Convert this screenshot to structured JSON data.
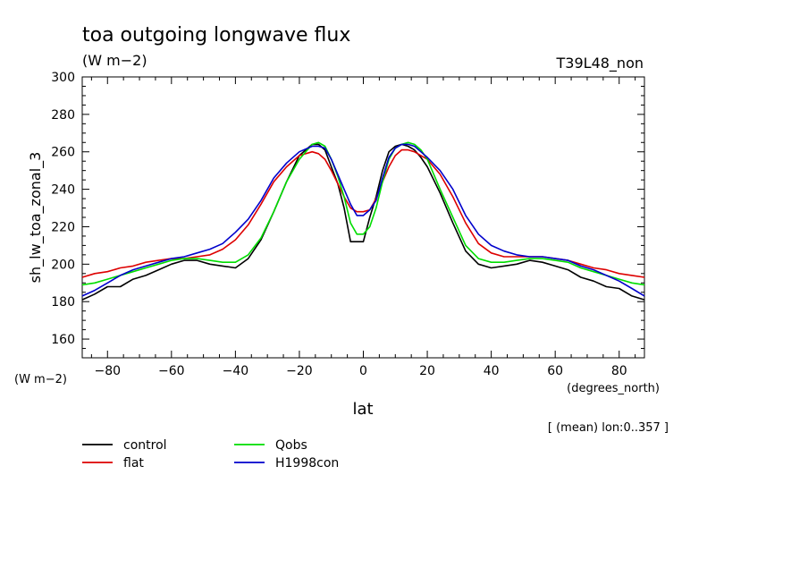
{
  "chart_data": {
    "type": "line",
    "title": "toa outgoing longwave flux",
    "units": "(W m−2)",
    "run_label": "T39L48_non",
    "ylabel": "sh_lw_toa_zonal_3",
    "yunits": "(W m−2)",
    "xlabel": "lat",
    "xunits": "(degrees_north)",
    "note": "[ (mean) lon:0..357 ]",
    "xlim": [
      -87.9,
      87.9
    ],
    "ylim": [
      150,
      300
    ],
    "xticks": [
      -80,
      -60,
      -40,
      -20,
      0,
      20,
      40,
      60,
      80
    ],
    "xtick_labels": [
      "−80",
      "−60",
      "−40",
      "−20",
      "0",
      "20",
      "40",
      "60",
      "80"
    ],
    "yticks": [
      160,
      180,
      200,
      220,
      240,
      260,
      280,
      300
    ],
    "ytick_labels": [
      "160",
      "180",
      "200",
      "220",
      "240",
      "260",
      "280",
      "300"
    ],
    "x": [
      -87.9,
      -84,
      -80,
      -76,
      -72,
      -68,
      -64,
      -60,
      -56,
      -52,
      -48,
      -44,
      -40,
      -36,
      -32,
      -28,
      -24,
      -20,
      -16,
      -14,
      -12,
      -10,
      -8,
      -6,
      -4,
      -2,
      0,
      2,
      4,
      6,
      8,
      10,
      12,
      14,
      16,
      18,
      20,
      24,
      28,
      32,
      36,
      40,
      44,
      48,
      52,
      56,
      60,
      64,
      68,
      72,
      76,
      80,
      84,
      87.9
    ],
    "series": [
      {
        "name": "control",
        "color": "#000000",
        "values": [
          181,
          184,
          188,
          188,
          192,
          194,
          197,
          200,
          202,
          202,
          200,
          199,
          198,
          203,
          213,
          228,
          244,
          258,
          264,
          264,
          261,
          252,
          243,
          230,
          212,
          212,
          212,
          225,
          236,
          250,
          260,
          263,
          264,
          263,
          261,
          257,
          252,
          238,
          222,
          207,
          200,
          198,
          199,
          200,
          202,
          201,
          199,
          197,
          193,
          191,
          188,
          187,
          183,
          181
        ]
      },
      {
        "name": "flat",
        "color": "#dd0000",
        "values": [
          193,
          195,
          196,
          198,
          199,
          201,
          202,
          203,
          203,
          204,
          205,
          208,
          213,
          221,
          232,
          244,
          252,
          258,
          260,
          259,
          256,
          250,
          243,
          236,
          230,
          228,
          228,
          229,
          235,
          244,
          252,
          258,
          261,
          261,
          260,
          258,
          256,
          248,
          236,
          222,
          211,
          206,
          204,
          204,
          204,
          204,
          203,
          202,
          200,
          198,
          197,
          195,
          194,
          193
        ]
      },
      {
        "name": "Qobs",
        "color": "#00dd00",
        "values": [
          189,
          190,
          192,
          194,
          196,
          198,
          200,
          202,
          203,
          203,
          202,
          201,
          201,
          205,
          214,
          228,
          244,
          256,
          264,
          265,
          263,
          256,
          247,
          236,
          222,
          216,
          216,
          220,
          230,
          244,
          256,
          262,
          264,
          265,
          264,
          261,
          256,
          240,
          225,
          210,
          203,
          201,
          201,
          202,
          203,
          203,
          202,
          201,
          198,
          196,
          194,
          192,
          190,
          189
        ]
      },
      {
        "name": "H1998con",
        "color": "#0000cc",
        "values": [
          183,
          186,
          190,
          194,
          197,
          199,
          201,
          203,
          204,
          206,
          208,
          211,
          217,
          224,
          234,
          246,
          254,
          260,
          263,
          263,
          262,
          256,
          248,
          240,
          232,
          226,
          226,
          229,
          234,
          246,
          257,
          262,
          264,
          264,
          263,
          260,
          257,
          250,
          240,
          226,
          216,
          210,
          207,
          205,
          204,
          204,
          203,
          202,
          199,
          197,
          194,
          191,
          187,
          183
        ]
      }
    ]
  }
}
